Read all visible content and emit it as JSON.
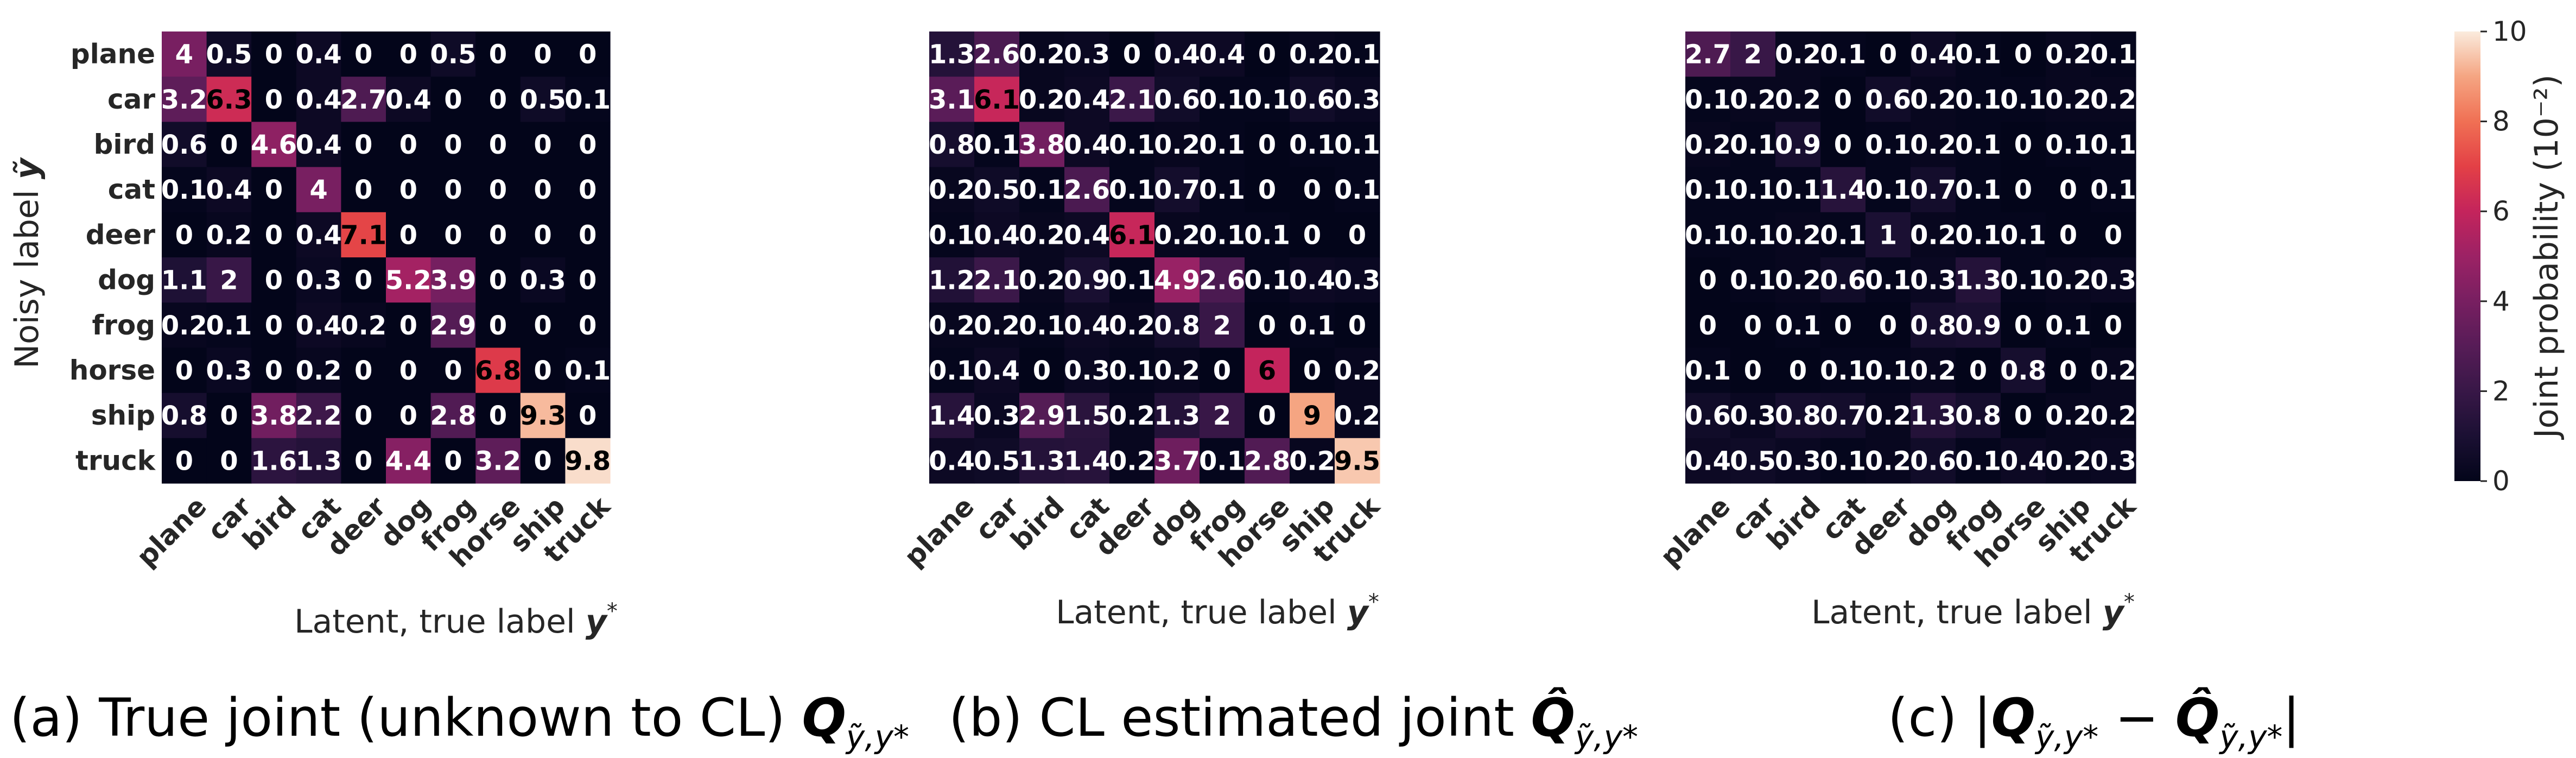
{
  "chart_data": [
    {
      "type": "heatmap",
      "caption": "(a) True joint (unknown to CL) Q_{ỹ,y*}",
      "xlabel": "Latent, true label y*",
      "ylabel": "Noisy label ỹ",
      "x_categories": [
        "plane",
        "car",
        "bird",
        "cat",
        "deer",
        "dog",
        "frog",
        "horse",
        "ship",
        "truck"
      ],
      "y_categories": [
        "plane",
        "car",
        "bird",
        "cat",
        "deer",
        "dog",
        "frog",
        "horse",
        "ship",
        "truck"
      ],
      "values": [
        [
          4,
          0.5,
          0,
          0.4,
          0,
          0,
          0.5,
          0,
          0,
          0
        ],
        [
          3.2,
          6.3,
          0,
          0.4,
          2.7,
          0.4,
          0,
          0,
          0.5,
          0.1
        ],
        [
          0.6,
          0,
          4.6,
          0.4,
          0,
          0,
          0,
          0,
          0,
          0
        ],
        [
          0.1,
          0.4,
          0,
          4,
          0,
          0,
          0,
          0,
          0,
          0
        ],
        [
          0,
          0.2,
          0,
          0.4,
          7.1,
          0,
          0,
          0,
          0,
          0
        ],
        [
          1.1,
          2,
          0,
          0.3,
          0,
          5.2,
          3.9,
          0,
          0.3,
          0
        ],
        [
          0.2,
          0.1,
          0,
          0.4,
          0.2,
          0,
          2.9,
          0,
          0,
          0
        ],
        [
          0,
          0.3,
          0,
          0.2,
          0,
          0,
          0,
          6.8,
          0,
          0.1
        ],
        [
          0.8,
          0,
          3.8,
          2.2,
          0,
          0,
          2.8,
          0,
          9.3,
          0
        ],
        [
          0,
          0,
          1.6,
          1.3,
          0,
          4.4,
          0,
          3.2,
          0,
          9.8
        ]
      ]
    },
    {
      "type": "heatmap",
      "caption": "(b) CL estimated joint Q̂_{ỹ,y*}",
      "xlabel": "Latent, true label y*",
      "ylabel": "",
      "x_categories": [
        "plane",
        "car",
        "bird",
        "cat",
        "deer",
        "dog",
        "frog",
        "horse",
        "ship",
        "truck"
      ],
      "y_categories": [],
      "values": [
        [
          1.3,
          2.6,
          0.2,
          0.3,
          0,
          0.4,
          0.4,
          0,
          0.2,
          0.1
        ],
        [
          3.1,
          6.1,
          0.2,
          0.4,
          2.1,
          0.6,
          0.1,
          0.1,
          0.6,
          0.3
        ],
        [
          0.8,
          0.1,
          3.8,
          0.4,
          0.1,
          0.2,
          0.1,
          0,
          0.1,
          0.1
        ],
        [
          0.2,
          0.5,
          0.1,
          2.6,
          0.1,
          0.7,
          0.1,
          0,
          0,
          0.1
        ],
        [
          0.1,
          0.4,
          0.2,
          0.4,
          6.1,
          0.2,
          0.1,
          0.1,
          0,
          0
        ],
        [
          1.2,
          2.1,
          0.2,
          0.9,
          0.1,
          4.9,
          2.6,
          0.1,
          0.4,
          0.3
        ],
        [
          0.2,
          0.2,
          0.1,
          0.4,
          0.2,
          0.8,
          2,
          0,
          0.1,
          0
        ],
        [
          0.1,
          0.4,
          0,
          0.3,
          0.1,
          0.2,
          0,
          6,
          0,
          0.2
        ],
        [
          1.4,
          0.3,
          2.9,
          1.5,
          0.2,
          1.3,
          2,
          0,
          9,
          0.2
        ],
        [
          0.4,
          0.5,
          1.3,
          1.4,
          0.2,
          3.7,
          0.1,
          2.8,
          0.2,
          9.5
        ]
      ]
    },
    {
      "type": "heatmap",
      "caption": "(c) |Q_{ỹ,y*} − Q̂_{ỹ,y*}|",
      "xlabel": "Latent, true label y*",
      "ylabel": "",
      "x_categories": [
        "plane",
        "car",
        "bird",
        "cat",
        "deer",
        "dog",
        "frog",
        "horse",
        "ship",
        "truck"
      ],
      "y_categories": [],
      "values": [
        [
          2.7,
          2,
          0.2,
          0.1,
          0,
          0.4,
          0.1,
          0,
          0.2,
          0.1
        ],
        [
          0.1,
          0.2,
          0.2,
          0,
          0.6,
          0.2,
          0.1,
          0.1,
          0.2,
          0.2
        ],
        [
          0.2,
          0.1,
          0.9,
          0,
          0.1,
          0.2,
          0.1,
          0,
          0.1,
          0.1
        ],
        [
          0.1,
          0.1,
          0.1,
          1.4,
          0.1,
          0.7,
          0.1,
          0,
          0,
          0.1
        ],
        [
          0.1,
          0.1,
          0.2,
          0.1,
          1,
          0.2,
          0.1,
          0.1,
          0,
          0
        ],
        [
          0,
          0.1,
          0.2,
          0.6,
          0.1,
          0.3,
          1.3,
          0.1,
          0.2,
          0.3
        ],
        [
          0,
          0,
          0.1,
          0,
          0,
          0.8,
          0.9,
          0,
          0.1,
          0
        ],
        [
          0.1,
          0,
          0,
          0.1,
          0.1,
          0.2,
          0,
          0.8,
          0,
          0.2
        ],
        [
          0.6,
          0.3,
          0.8,
          0.7,
          0.2,
          1.3,
          0.8,
          0,
          0.2,
          0.2
        ],
        [
          0.4,
          0.5,
          0.3,
          0.1,
          0.2,
          0.6,
          0.1,
          0.4,
          0.2,
          0.3
        ]
      ]
    }
  ],
  "colorbar": {
    "label": "Joint probability (10⁻²)",
    "range": [
      0,
      10
    ],
    "ticks": [
      "0",
      "2",
      "4",
      "6",
      "8",
      "10"
    ],
    "colormap": "rocket"
  },
  "captions": {
    "a_text": "(a) True joint (unknown to CL) ",
    "a_math_main": "Q",
    "a_math_sub": "ỹ,y*",
    "b_text": "(b) CL estimated joint ",
    "b_math_main": "Q̂",
    "b_math_sub": "ỹ,y*",
    "c_open": "(c) |",
    "c_q1": "Q",
    "c_sub1": "ỹ,y*",
    "c_minus": " − ",
    "c_q2": "Q̂",
    "c_sub2": "ỹ,y*",
    "c_close": "|"
  },
  "axis_titles": {
    "ylabel_text": "Noisy label ",
    "ylabel_sym": "ỹ",
    "xlabel_text": "Latent, true label ",
    "xlabel_sym": "y",
    "xlabel_sup": "*"
  }
}
